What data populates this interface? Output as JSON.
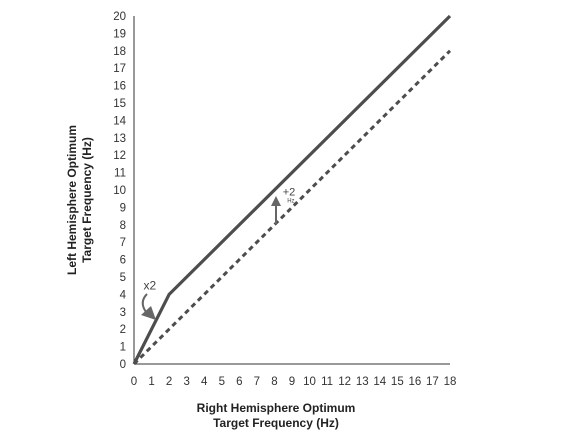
{
  "chart_data": {
    "type": "line",
    "title": "",
    "xlabel": [
      "Right Hemisphere Optimum",
      "Target Frequency (Hz)"
    ],
    "ylabel": [
      "Left Hemisphere Optimum",
      "Target Frequency (Hz)"
    ],
    "xlim": [
      0,
      18
    ],
    "ylim": [
      0,
      20
    ],
    "x_ticks": [
      0,
      1,
      2,
      3,
      4,
      5,
      6,
      7,
      8,
      9,
      10,
      11,
      12,
      13,
      14,
      15,
      16,
      17,
      18
    ],
    "y_ticks": [
      0,
      1,
      2,
      3,
      4,
      5,
      6,
      7,
      8,
      9,
      10,
      11,
      12,
      13,
      14,
      15,
      16,
      17,
      18,
      19,
      20
    ],
    "grid": false,
    "legend": "none",
    "series": [
      {
        "style": "solid",
        "color": "#4d4d4d",
        "x": [
          0,
          2,
          18
        ],
        "y": [
          0,
          4,
          20
        ]
      },
      {
        "style": "dashed",
        "color": "#4d4d4d",
        "x": [
          0,
          18
        ],
        "y": [
          0,
          18
        ]
      }
    ],
    "annotations": {
      "x2": {
        "text": "x2",
        "x": 1,
        "y": 4.5
      },
      "plus2": {
        "text": "+2",
        "unit": "Hz",
        "x": 8.7,
        "y": 9.9
      }
    }
  }
}
